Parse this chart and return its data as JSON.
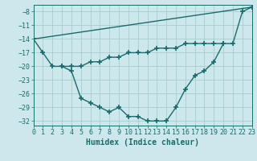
{
  "xlabel": "Humidex (Indice chaleur)",
  "bg_color": "#cce8ec",
  "grid_color": "#aacccc",
  "line_color": "#1a6b6b",
  "line1_x": [
    0,
    1,
    2,
    3,
    4,
    5,
    6,
    7,
    8,
    9,
    10,
    11,
    12,
    13,
    14,
    15,
    16,
    17,
    18,
    19,
    20,
    21,
    22,
    23
  ],
  "line1_y": [
    -14,
    -17,
    -20,
    -20,
    -21,
    -27,
    -28,
    -29,
    -30,
    -29,
    -31,
    -31,
    -32,
    -32,
    -32,
    -29,
    -25,
    -22,
    -21,
    -19,
    -15,
    -15,
    -8,
    -7
  ],
  "line2_x": [
    0,
    23
  ],
  "line2_y": [
    -14,
    -7
  ],
  "line3_x": [
    3,
    4,
    5,
    6,
    7,
    8,
    9,
    10,
    11,
    12,
    13,
    14,
    15,
    16,
    17,
    18,
    19,
    20
  ],
  "line3_y": [
    -20,
    -20,
    -20,
    -19,
    -19,
    -18,
    -18,
    -17,
    -17,
    -17,
    -16,
    -16,
    -16,
    -15,
    -15,
    -15,
    -15,
    -15
  ],
  "xlim": [
    0,
    23
  ],
  "ylim": [
    -33,
    -6.5
  ],
  "yticks": [
    -8,
    -11,
    -14,
    -17,
    -20,
    -23,
    -26,
    -29,
    -32
  ],
  "xticks": [
    0,
    1,
    2,
    3,
    4,
    5,
    6,
    7,
    8,
    9,
    10,
    11,
    12,
    13,
    14,
    15,
    16,
    17,
    18,
    19,
    20,
    21,
    22,
    23
  ],
  "tick_fontsize": 6,
  "xlabel_fontsize": 7
}
